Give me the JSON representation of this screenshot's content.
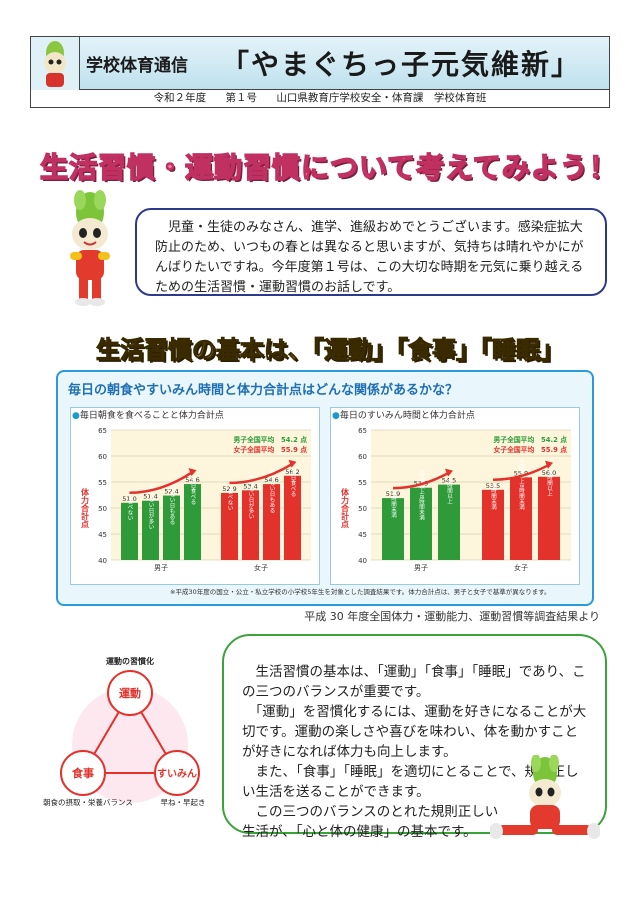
{
  "header": {
    "label": "学校体育通信",
    "title": "「やまぐちっ子元気維新」",
    "issue_year": "令和２年度",
    "issue_no": "第１号",
    "publisher": "山口県教育庁学校安全・体育課　学校体育班"
  },
  "headline": "生活習慣・運動習慣について考えてみよう！",
  "intro": "　児童・生徒のみなさん、進学、進級おめでとうございます。感染症拡大防止のため、いつもの春とは異なると思いますが、気持ちは晴れやかにがんばりたいですね。今年度第１号は、この大切な時期を元気に乗り越えるための生活習慣・運動習慣のお話しです。",
  "section": {
    "prefix": "生活習慣の基本は、",
    "k1": "「運動」",
    "k2": "「食事」",
    "k3": "「睡眠」"
  },
  "chart_question": "毎日の朝食やすいみん時間と体力合計点はどんな関係があるかな？",
  "chart_note": "※平成30年度の国立・公立・私立学校の小学校5年生を対象とした調査結果です。体力合計点は、男子と女子で基準が異なります。",
  "source": "平成 30 年度全国体力・運動能力、運動習慣等調査結果より",
  "colors": {
    "green": "#2e9a3a",
    "red": "#e3322b",
    "arrow": "#e3322b",
    "accent": "#2a9bd8"
  },
  "chart_data": [
    {
      "type": "bar",
      "title": "毎日朝食を食べることと体力合計点",
      "ylabel": "体力合計点",
      "ylim": [
        40,
        65
      ],
      "yticks": [
        40,
        45,
        50,
        55,
        60,
        65
      ],
      "groups": [
        "男子",
        "女子"
      ],
      "categories": [
        "食べない",
        "食べない日が多い",
        "食べない日もある",
        "毎日食べる"
      ],
      "series": [
        {
          "name": "男子",
          "values": [
            51.0,
            51.4,
            52.4,
            54.6
          ]
        },
        {
          "name": "女子",
          "values": [
            52.9,
            53.4,
            54.6,
            56.2
          ]
        }
      ],
      "reference": [
        "男子全国平均　54.2 点",
        "女子全国平均　55.9 点"
      ]
    },
    {
      "type": "bar",
      "title": "毎日のすいみん時間と体力合計点",
      "ylabel": "体力合計点",
      "ylim": [
        40,
        65
      ],
      "yticks": [
        40,
        45,
        50,
        55,
        60,
        65
      ],
      "groups": [
        "男子",
        "女子"
      ],
      "categories": [
        "6時間未満",
        "6時間以上8時間未満",
        "8時間以上"
      ],
      "series": [
        {
          "name": "男子",
          "values": [
            51.9,
            53.9,
            54.5
          ]
        },
        {
          "name": "女子",
          "values": [
            53.5,
            55.9,
            56.0
          ]
        }
      ],
      "reference": [
        "男子全国平均　54.2 点",
        "女子全国平均　55.9 点"
      ]
    }
  ],
  "diagram": {
    "title": "運動の習慣化",
    "nodes": [
      "運動",
      "食事",
      "すいみん"
    ],
    "left_caption": "朝食の摂取・栄養バランス",
    "right_caption": "早ね・早起き"
  },
  "body": [
    "　生活習慣の基本は、「運動」「食事」「睡眠」であり、この三つのバランスが重要です。",
    "　「運動」を習慣化するには、運動を好きになることが大切です。運動の楽しさや喜びを味わい、体を動かすことが好きになれば体力も向上します。",
    "　また、「食事」「睡眠」を適切にとることで、規則正しい生活を送ることができます。",
    "　この三つのバランスのとれた規則正しい生活が、「心と体の健康」の基本です。"
  ]
}
